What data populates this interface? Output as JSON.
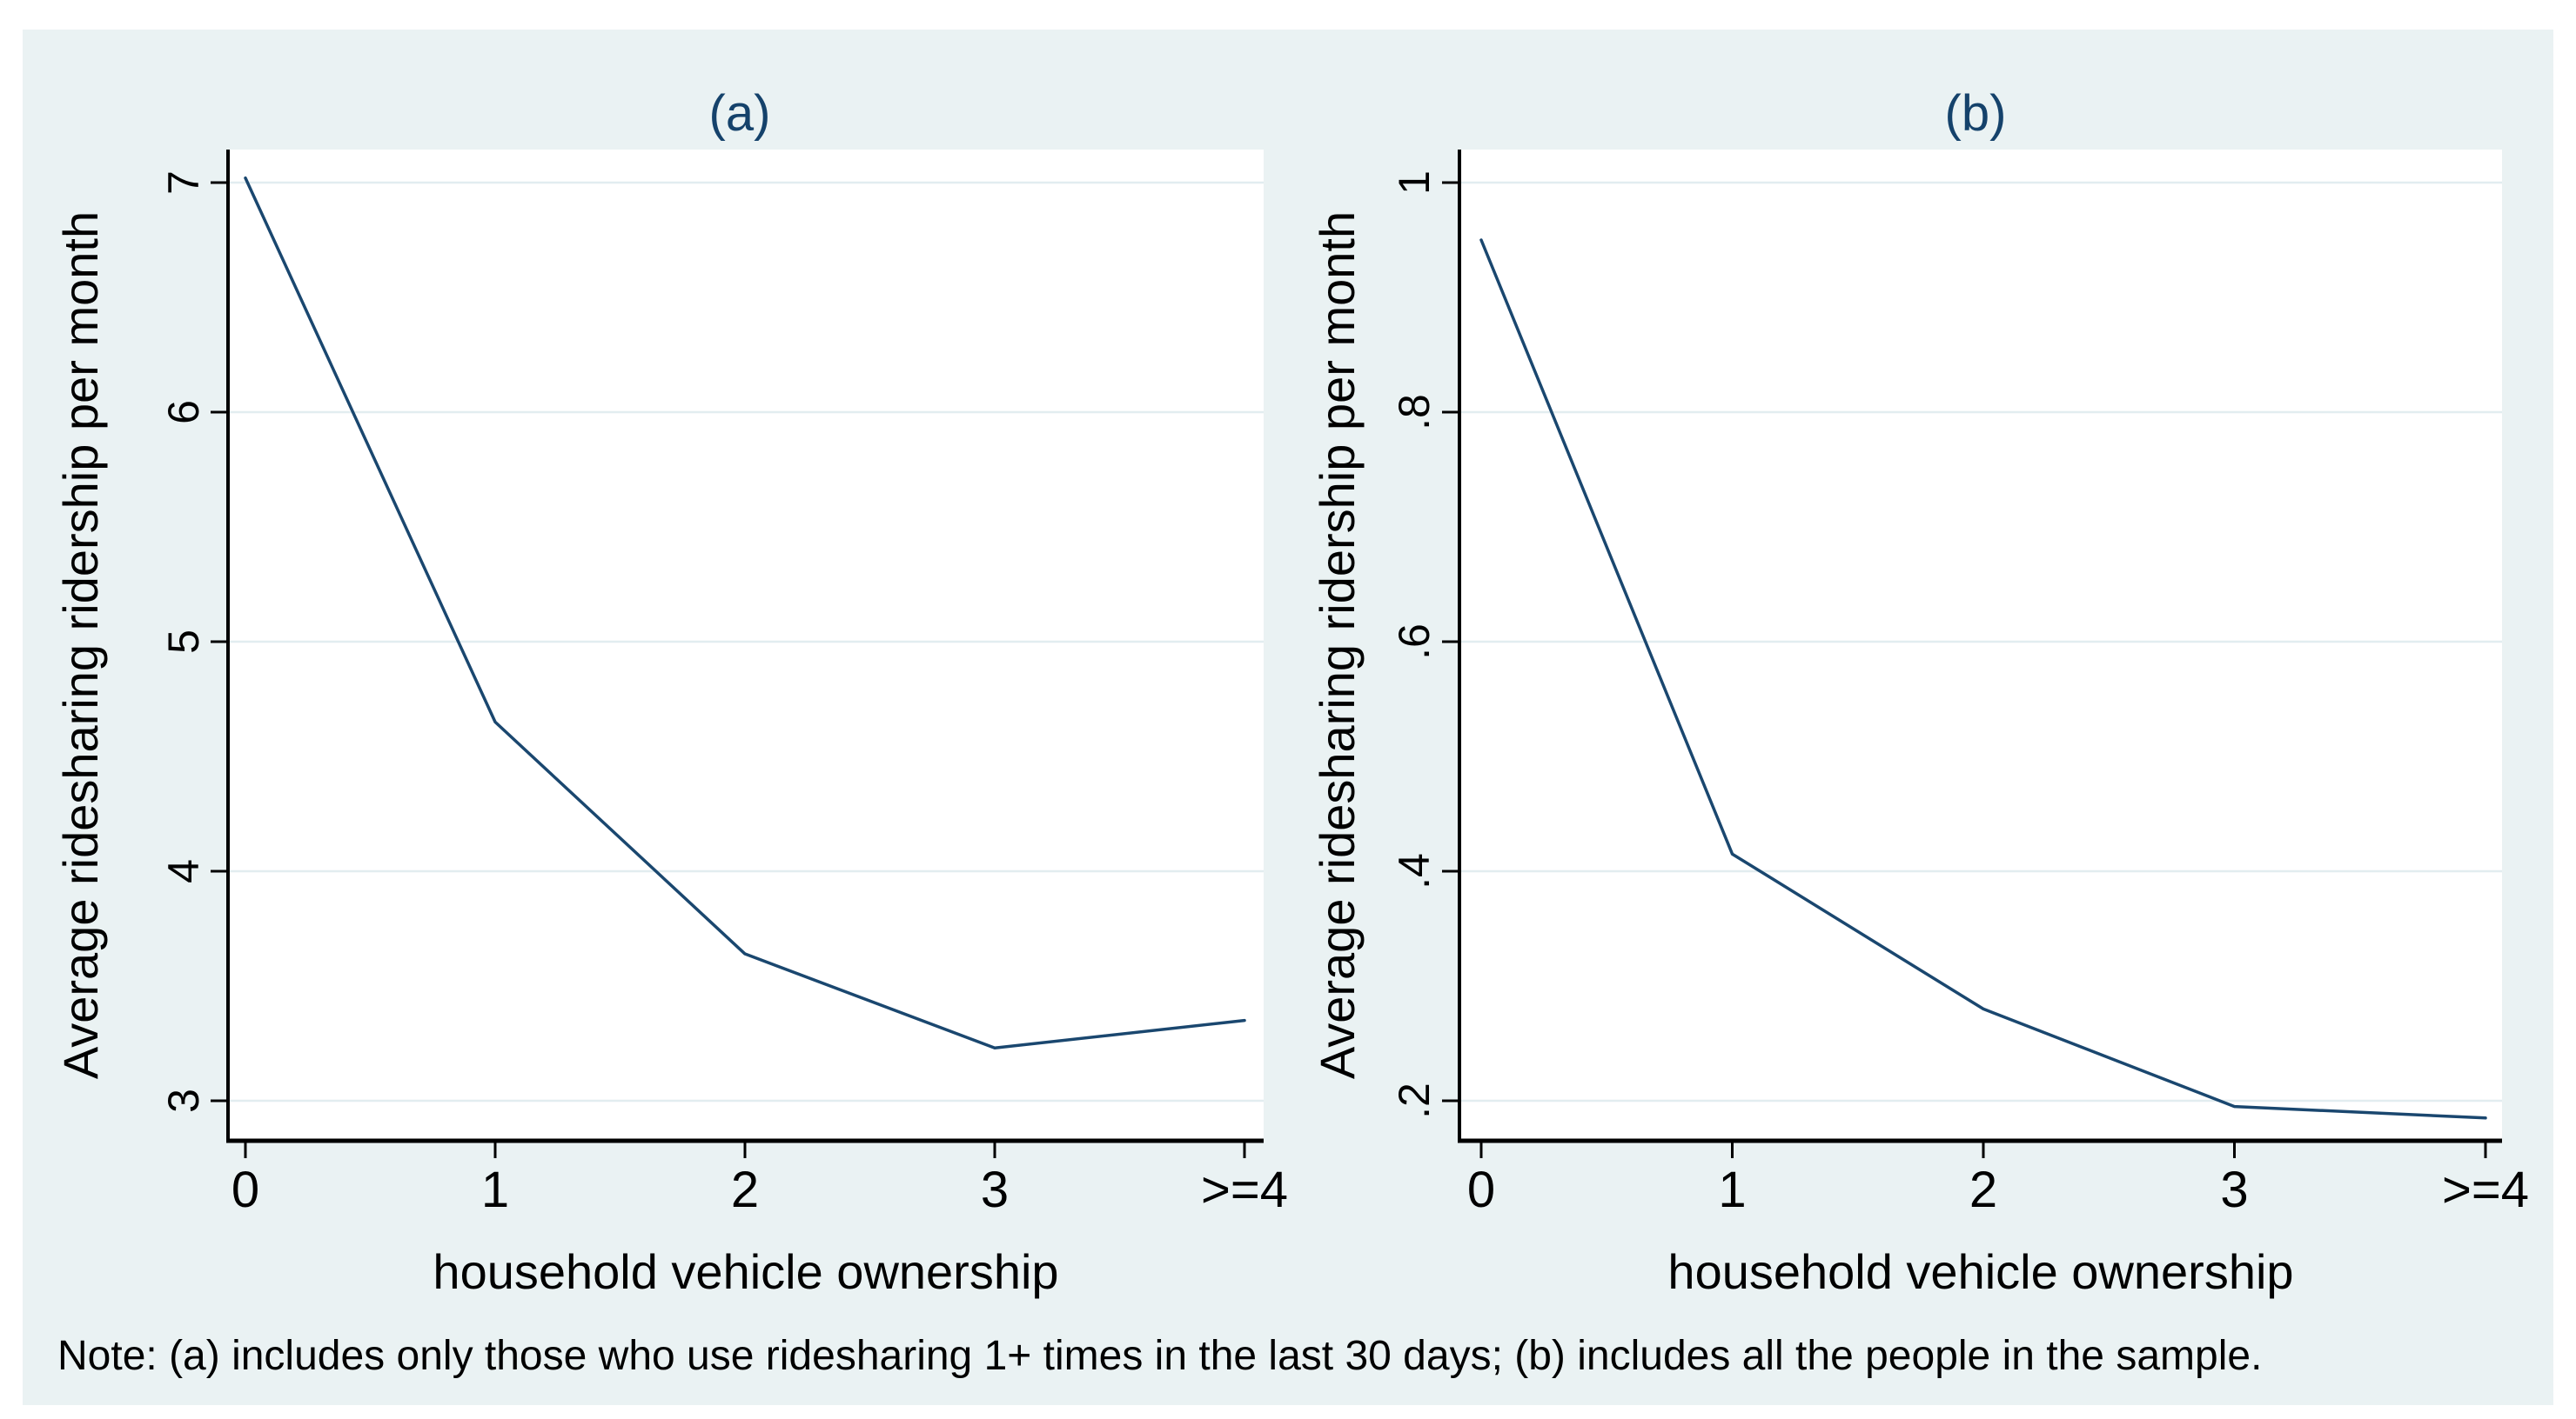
{
  "figure": {
    "note": "Note: (a) includes only those who use ridesharing 1+ times in the last 30 days; (b) includes all the people in the sample.",
    "background_color": "#ffffff",
    "panel_color": "#eaf2f3",
    "plot_background": "#ffffff",
    "grid_color": "#e2edf0",
    "axis_color": "#000000",
    "text_color": "#000000",
    "title_color": "#15426b",
    "line_color": "#1a476f"
  },
  "chart_data": [
    {
      "type": "line",
      "title": "(a)",
      "xlabel": "household vehicle ownership",
      "ylabel": "Average ridesharing ridership per month",
      "categories": [
        "0",
        "1",
        "2",
        "3",
        ">=4"
      ],
      "values": [
        7.02,
        4.65,
        3.64,
        3.23,
        3.35
      ],
      "ylim": [
        3,
        7
      ],
      "yticks": [
        3,
        4,
        5,
        6,
        7
      ],
      "ytick_labels": [
        "3",
        "4",
        "5",
        "6",
        "7"
      ],
      "grid": true,
      "legend": "none",
      "line_color": "#1a476f"
    },
    {
      "type": "line",
      "title": "(b)",
      "xlabel": "household vehicle ownership",
      "ylabel": "Average ridesharing ridership per month",
      "categories": [
        "0",
        "1",
        "2",
        "3",
        ">=4"
      ],
      "values": [
        0.95,
        0.415,
        0.28,
        0.195,
        0.185
      ],
      "ylim": [
        0.2,
        1
      ],
      "yticks": [
        0.2,
        0.4,
        0.6,
        0.8,
        1
      ],
      "ytick_labels": [
        ".2",
        ".4",
        ".6",
        ".8",
        "1"
      ],
      "grid": true,
      "legend": "none",
      "line_color": "#1a476f"
    }
  ]
}
